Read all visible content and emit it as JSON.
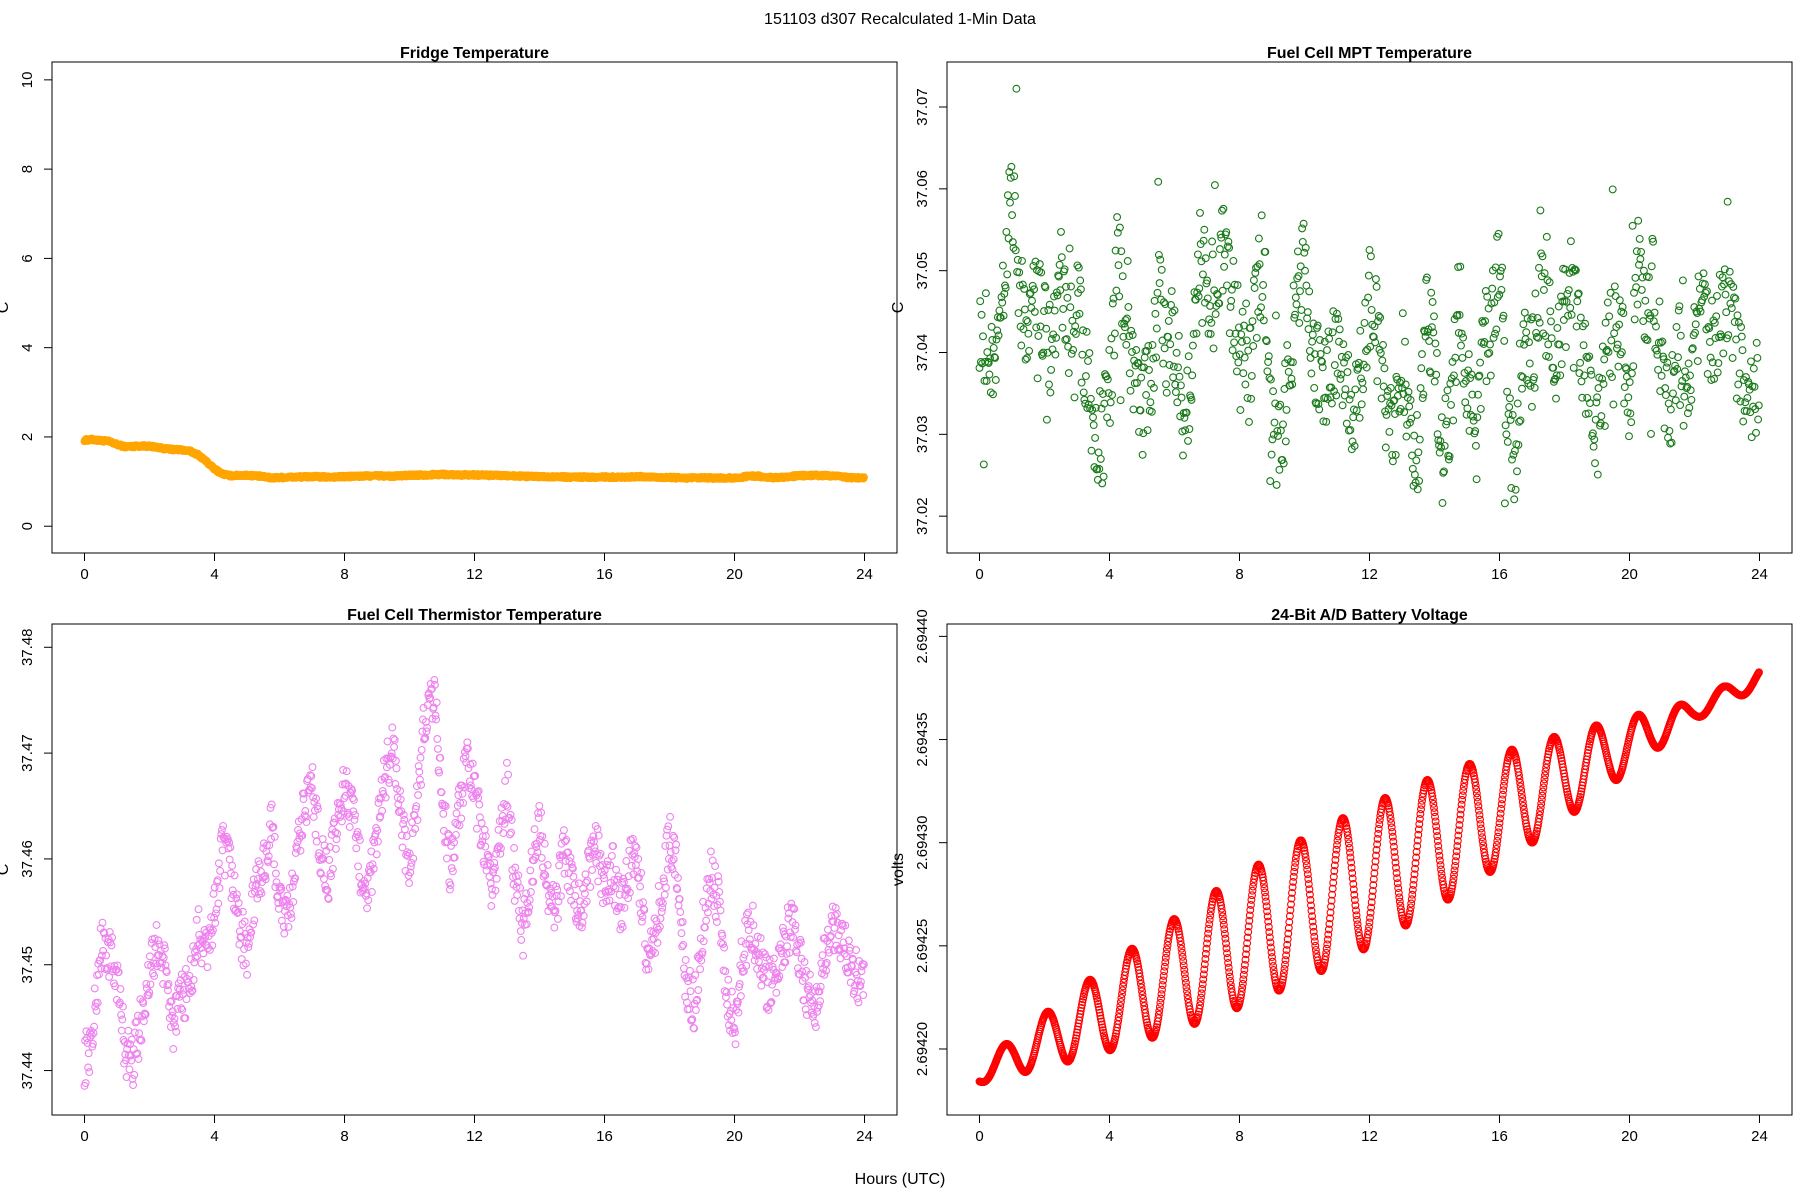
{
  "figure": {
    "title": "151103   d307   Recalculated 1-Min Data",
    "xlabel": "Hours (UTC)"
  },
  "chart_data": [
    {
      "type": "scatter",
      "title": "Fridge Temperature",
      "xlabel": "",
      "ylabel": "C",
      "color": "#FFA500",
      "xlim": [
        -1,
        25
      ],
      "ylim": [
        -0.6,
        10.4
      ],
      "xticks": [
        0,
        4,
        8,
        12,
        16,
        20,
        24
      ],
      "yticks": [
        0,
        2,
        4,
        6,
        8,
        10
      ],
      "ytick_labels": [
        "0",
        "2",
        "4",
        "6",
        "8",
        "10"
      ],
      "series": [
        {
          "name": "Fridge Temperature",
          "x": [
            0,
            0.25,
            0.5,
            0.75,
            1,
            1.25,
            1.5,
            1.75,
            2,
            2.25,
            2.5,
            2.75,
            3,
            3.25,
            3.5,
            3.75,
            4,
            4.25,
            4.5,
            4.75,
            5,
            5.25,
            5.5,
            5.75,
            6,
            6.5,
            7,
            7.5,
            8,
            8.5,
            9,
            9.5,
            10,
            10.5,
            11,
            11.5,
            12,
            12.5,
            13,
            13.5,
            14,
            14.5,
            15,
            15.5,
            16,
            16.5,
            17,
            17.5,
            18,
            18.5,
            19,
            19.5,
            20,
            20.25,
            20.5,
            20.75,
            21,
            21.5,
            22,
            22.5,
            23,
            23.5,
            24
          ],
          "y": [
            1.93,
            1.94,
            1.92,
            1.9,
            1.83,
            1.78,
            1.79,
            1.8,
            1.79,
            1.77,
            1.73,
            1.72,
            1.71,
            1.68,
            1.6,
            1.45,
            1.28,
            1.17,
            1.13,
            1.14,
            1.14,
            1.13,
            1.11,
            1.08,
            1.09,
            1.1,
            1.11,
            1.1,
            1.11,
            1.12,
            1.13,
            1.12,
            1.14,
            1.15,
            1.16,
            1.15,
            1.15,
            1.14,
            1.13,
            1.12,
            1.11,
            1.11,
            1.1,
            1.1,
            1.1,
            1.1,
            1.11,
            1.1,
            1.09,
            1.08,
            1.08,
            1.08,
            1.08,
            1.1,
            1.13,
            1.12,
            1.09,
            1.1,
            1.13,
            1.14,
            1.13,
            1.09,
            1.08
          ]
        }
      ]
    },
    {
      "type": "scatter",
      "title": "Fuel Cell MPT Temperature",
      "xlabel": "",
      "ylabel": "C",
      "color": "#1a7a1a",
      "xlim": [
        -1,
        25
      ],
      "ylim": [
        37.0155,
        37.0755
      ],
      "xticks": [
        0,
        4,
        8,
        12,
        16,
        20,
        24
      ],
      "yticks": [
        37.02,
        37.03,
        37.04,
        37.05,
        37.06,
        37.07
      ],
      "ytick_labels": [
        "37.02",
        "37.03",
        "37.04",
        "37.05",
        "37.06",
        "37.07"
      ],
      "series": [
        {
          "name": "Fuel Cell MPT Temperature",
          "x": [
            0,
            0.25,
            0.5,
            0.75,
            1,
            1.25,
            1.5,
            1.75,
            2,
            2.25,
            2.5,
            2.75,
            3,
            3.25,
            3.5,
            3.75,
            4,
            4.25,
            4.5,
            4.75,
            5,
            5.25,
            5.5,
            5.75,
            6,
            6.25,
            6.5,
            6.75,
            7,
            7.25,
            7.5,
            7.75,
            8,
            8.25,
            8.5,
            8.75,
            9,
            9.25,
            9.5,
            9.75,
            10,
            10.25,
            10.5,
            10.75,
            11,
            11.25,
            11.5,
            11.75,
            12,
            12.25,
            12.5,
            12.75,
            13,
            13.25,
            13.5,
            13.75,
            14,
            14.25,
            14.5,
            14.75,
            15,
            15.25,
            15.5,
            15.75,
            16,
            16.25,
            16.5,
            16.75,
            17,
            17.25,
            17.5,
            17.75,
            18,
            18.25,
            18.5,
            18.75,
            19,
            19.25,
            19.5,
            19.75,
            20,
            20.25,
            20.5,
            20.75,
            21,
            21.25,
            21.5,
            21.75,
            22,
            22.25,
            22.5,
            22.75,
            23,
            23.25,
            23.5,
            23.75,
            24
          ],
          "y": [
            37.044,
            37.041,
            37.036,
            37.049,
            37.061,
            37.046,
            37.043,
            37.047,
            37.045,
            37.039,
            37.051,
            37.041,
            37.047,
            37.038,
            37.031,
            37.029,
            37.035,
            37.052,
            37.044,
            37.038,
            37.033,
            37.036,
            37.047,
            37.041,
            37.043,
            37.031,
            37.035,
            37.052,
            37.049,
            37.045,
            37.054,
            37.047,
            37.041,
            37.036,
            37.045,
            37.053,
            37.031,
            37.028,
            37.036,
            37.048,
            37.051,
            37.042,
            37.035,
            37.038,
            37.041,
            37.036,
            37.031,
            37.038,
            37.047,
            37.042,
            37.034,
            37.028,
            37.041,
            37.031,
            37.026,
            37.045,
            37.039,
            37.027,
            37.032,
            37.046,
            37.038,
            37.028,
            37.041,
            37.043,
            37.051,
            37.031,
            37.027,
            37.044,
            37.039,
            37.047,
            37.044,
            37.038,
            37.046,
            37.049,
            37.041,
            37.036,
            37.029,
            37.039,
            37.043,
            37.044,
            37.031,
            37.052,
            37.044,
            37.049,
            37.037,
            37.033,
            37.042,
            37.031,
            37.043,
            37.047,
            37.041,
            37.044,
            37.047,
            37.041,
            37.036,
            37.033,
            37.038
          ]
        }
      ]
    },
    {
      "type": "scatter",
      "title": "Fuel Cell Thermistor Temperature",
      "xlabel": "",
      "ylabel": "C",
      "color": "#EE82EE",
      "xlim": [
        -1,
        25
      ],
      "ylim": [
        37.4358,
        37.4822
      ],
      "xticks": [
        0,
        4,
        8,
        12,
        16,
        20,
        24
      ],
      "yticks": [
        37.44,
        37.45,
        37.46,
        37.47,
        37.48
      ],
      "ytick_labels": [
        "37.44",
        "37.45",
        "37.46",
        "37.47",
        "37.48"
      ],
      "series": [
        {
          "name": "Fuel Cell Thermistor Temperature",
          "x": [
            0,
            0.25,
            0.5,
            0.75,
            1,
            1.25,
            1.5,
            1.75,
            2,
            2.25,
            2.5,
            2.75,
            3,
            3.25,
            3.5,
            3.75,
            4,
            4.25,
            4.5,
            4.75,
            5,
            5.25,
            5.5,
            5.75,
            6,
            6.25,
            6.5,
            6.75,
            7,
            7.25,
            7.5,
            7.75,
            8,
            8.25,
            8.5,
            8.75,
            9,
            9.25,
            9.5,
            9.75,
            10,
            10.25,
            10.5,
            10.75,
            11,
            11.25,
            11.5,
            11.75,
            12,
            12.25,
            12.5,
            12.75,
            13,
            13.25,
            13.5,
            13.75,
            14,
            14.25,
            14.5,
            14.75,
            15,
            15.25,
            15.5,
            15.75,
            16,
            16.25,
            16.5,
            16.75,
            17,
            17.25,
            17.5,
            17.75,
            18,
            18.25,
            18.5,
            18.75,
            19,
            19.25,
            19.5,
            19.75,
            20,
            20.25,
            20.5,
            20.75,
            21,
            21.25,
            21.5,
            21.75,
            22,
            22.25,
            22.5,
            22.75,
            23,
            23.25,
            23.5,
            23.75,
            24
          ],
          "y": [
            37.441,
            37.443,
            37.452,
            37.451,
            37.449,
            37.442,
            37.441,
            37.445,
            37.449,
            37.452,
            37.449,
            37.444,
            37.447,
            37.448,
            37.453,
            37.451,
            37.455,
            37.461,
            37.459,
            37.454,
            37.451,
            37.457,
            37.459,
            37.463,
            37.456,
            37.454,
            37.459,
            37.465,
            37.467,
            37.461,
            37.458,
            37.463,
            37.467,
            37.464,
            37.459,
            37.457,
            37.462,
            37.468,
            37.471,
            37.463,
            37.459,
            37.466,
            37.474,
            37.476,
            37.466,
            37.459,
            37.464,
            37.469,
            37.466,
            37.462,
            37.457,
            37.461,
            37.467,
            37.458,
            37.453,
            37.459,
            37.464,
            37.457,
            37.455,
            37.461,
            37.458,
            37.455,
            37.459,
            37.461,
            37.457,
            37.459,
            37.455,
            37.459,
            37.461,
            37.452,
            37.451,
            37.457,
            37.462,
            37.459,
            37.448,
            37.446,
            37.453,
            37.459,
            37.456,
            37.448,
            37.444,
            37.451,
            37.454,
            37.451,
            37.448,
            37.449,
            37.452,
            37.454,
            37.451,
            37.447,
            37.446,
            37.451,
            37.454,
            37.452,
            37.451,
            37.449,
            37.448
          ]
        }
      ]
    },
    {
      "type": "scatter",
      "title": "24-Bit A/D Battery Voltage",
      "xlabel": "",
      "ylabel": "volts",
      "color": "#FF0000",
      "xlim": [
        -1,
        25
      ],
      "ylim": [
        2.694168,
        2.694406
      ],
      "xticks": [
        0,
        4,
        8,
        12,
        16,
        20,
        24
      ],
      "yticks": [
        2.6942,
        2.69425,
        2.6943,
        2.69435,
        2.6944
      ],
      "ytick_labels": [
        "2.69420",
        "2.69425",
        "2.69430",
        "2.69435",
        "2.69440"
      ],
      "series": [
        {
          "name": "24-Bit A/D Battery Voltage",
          "formula": "v = 2.694188 + 0.0000080*h + a(h)*sin(2*pi*(h-0.45)/1.3)",
          "x_range": [
            0,
            24
          ],
          "n_points": 1440
        }
      ]
    }
  ]
}
